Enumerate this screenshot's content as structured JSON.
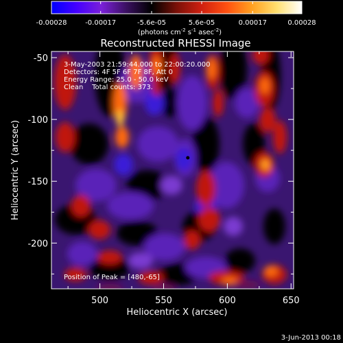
{
  "colorbar": {
    "ticks": [
      "-0.00028",
      "-0.00017",
      "-5.6e-05",
      "5.6e-05",
      "0.00017",
      "0.00028"
    ],
    "tick_values": [
      -0.00028,
      -0.00017,
      -5.6e-05,
      5.6e-05,
      0.00017,
      0.00028
    ],
    "range": [
      -0.00028,
      0.00028
    ],
    "units_main": "(photons cm",
    "units_exp1": "-2",
    "units_s": " s",
    "units_exp2": "-1",
    "units_asec": " asec",
    "units_exp3": "-2",
    "units_close": ")",
    "colors": [
      "#0000ff",
      "#4400ff",
      "#7a20d8",
      "#3a1060",
      "#000000",
      "#7a1008",
      "#d02010",
      "#ff5010",
      "#ffa020",
      "#ffe070",
      "#ffffff"
    ]
  },
  "chart_data": {
    "type": "heatmap",
    "title": "Reconstructed RHESSI Image",
    "xlabel": "Heliocentric X (arcsec)",
    "ylabel": "Heliocentric Y (arcsec)",
    "xlim": [
      462,
      652
    ],
    "ylim": [
      -237,
      -45
    ],
    "x_ticks": [
      500,
      550,
      600,
      650
    ],
    "y_ticks": [
      -50,
      -100,
      -150,
      -200
    ],
    "info_lines": [
      "3-May-2003 21:59:44.000 to 22:00:20.000",
      "Detectors: 4F 5F 6F 7F 8F, Att 0",
      "Energy Range: 25.0 - 50.0 keV",
      "Clean    Total counts: 373."
    ],
    "peak_label": "Position of Peak = [480,-65]",
    "marker": {
      "x": 569,
      "y": -131
    }
  },
  "footer": {
    "timestamp": "3-Jun-2013 00:18"
  }
}
